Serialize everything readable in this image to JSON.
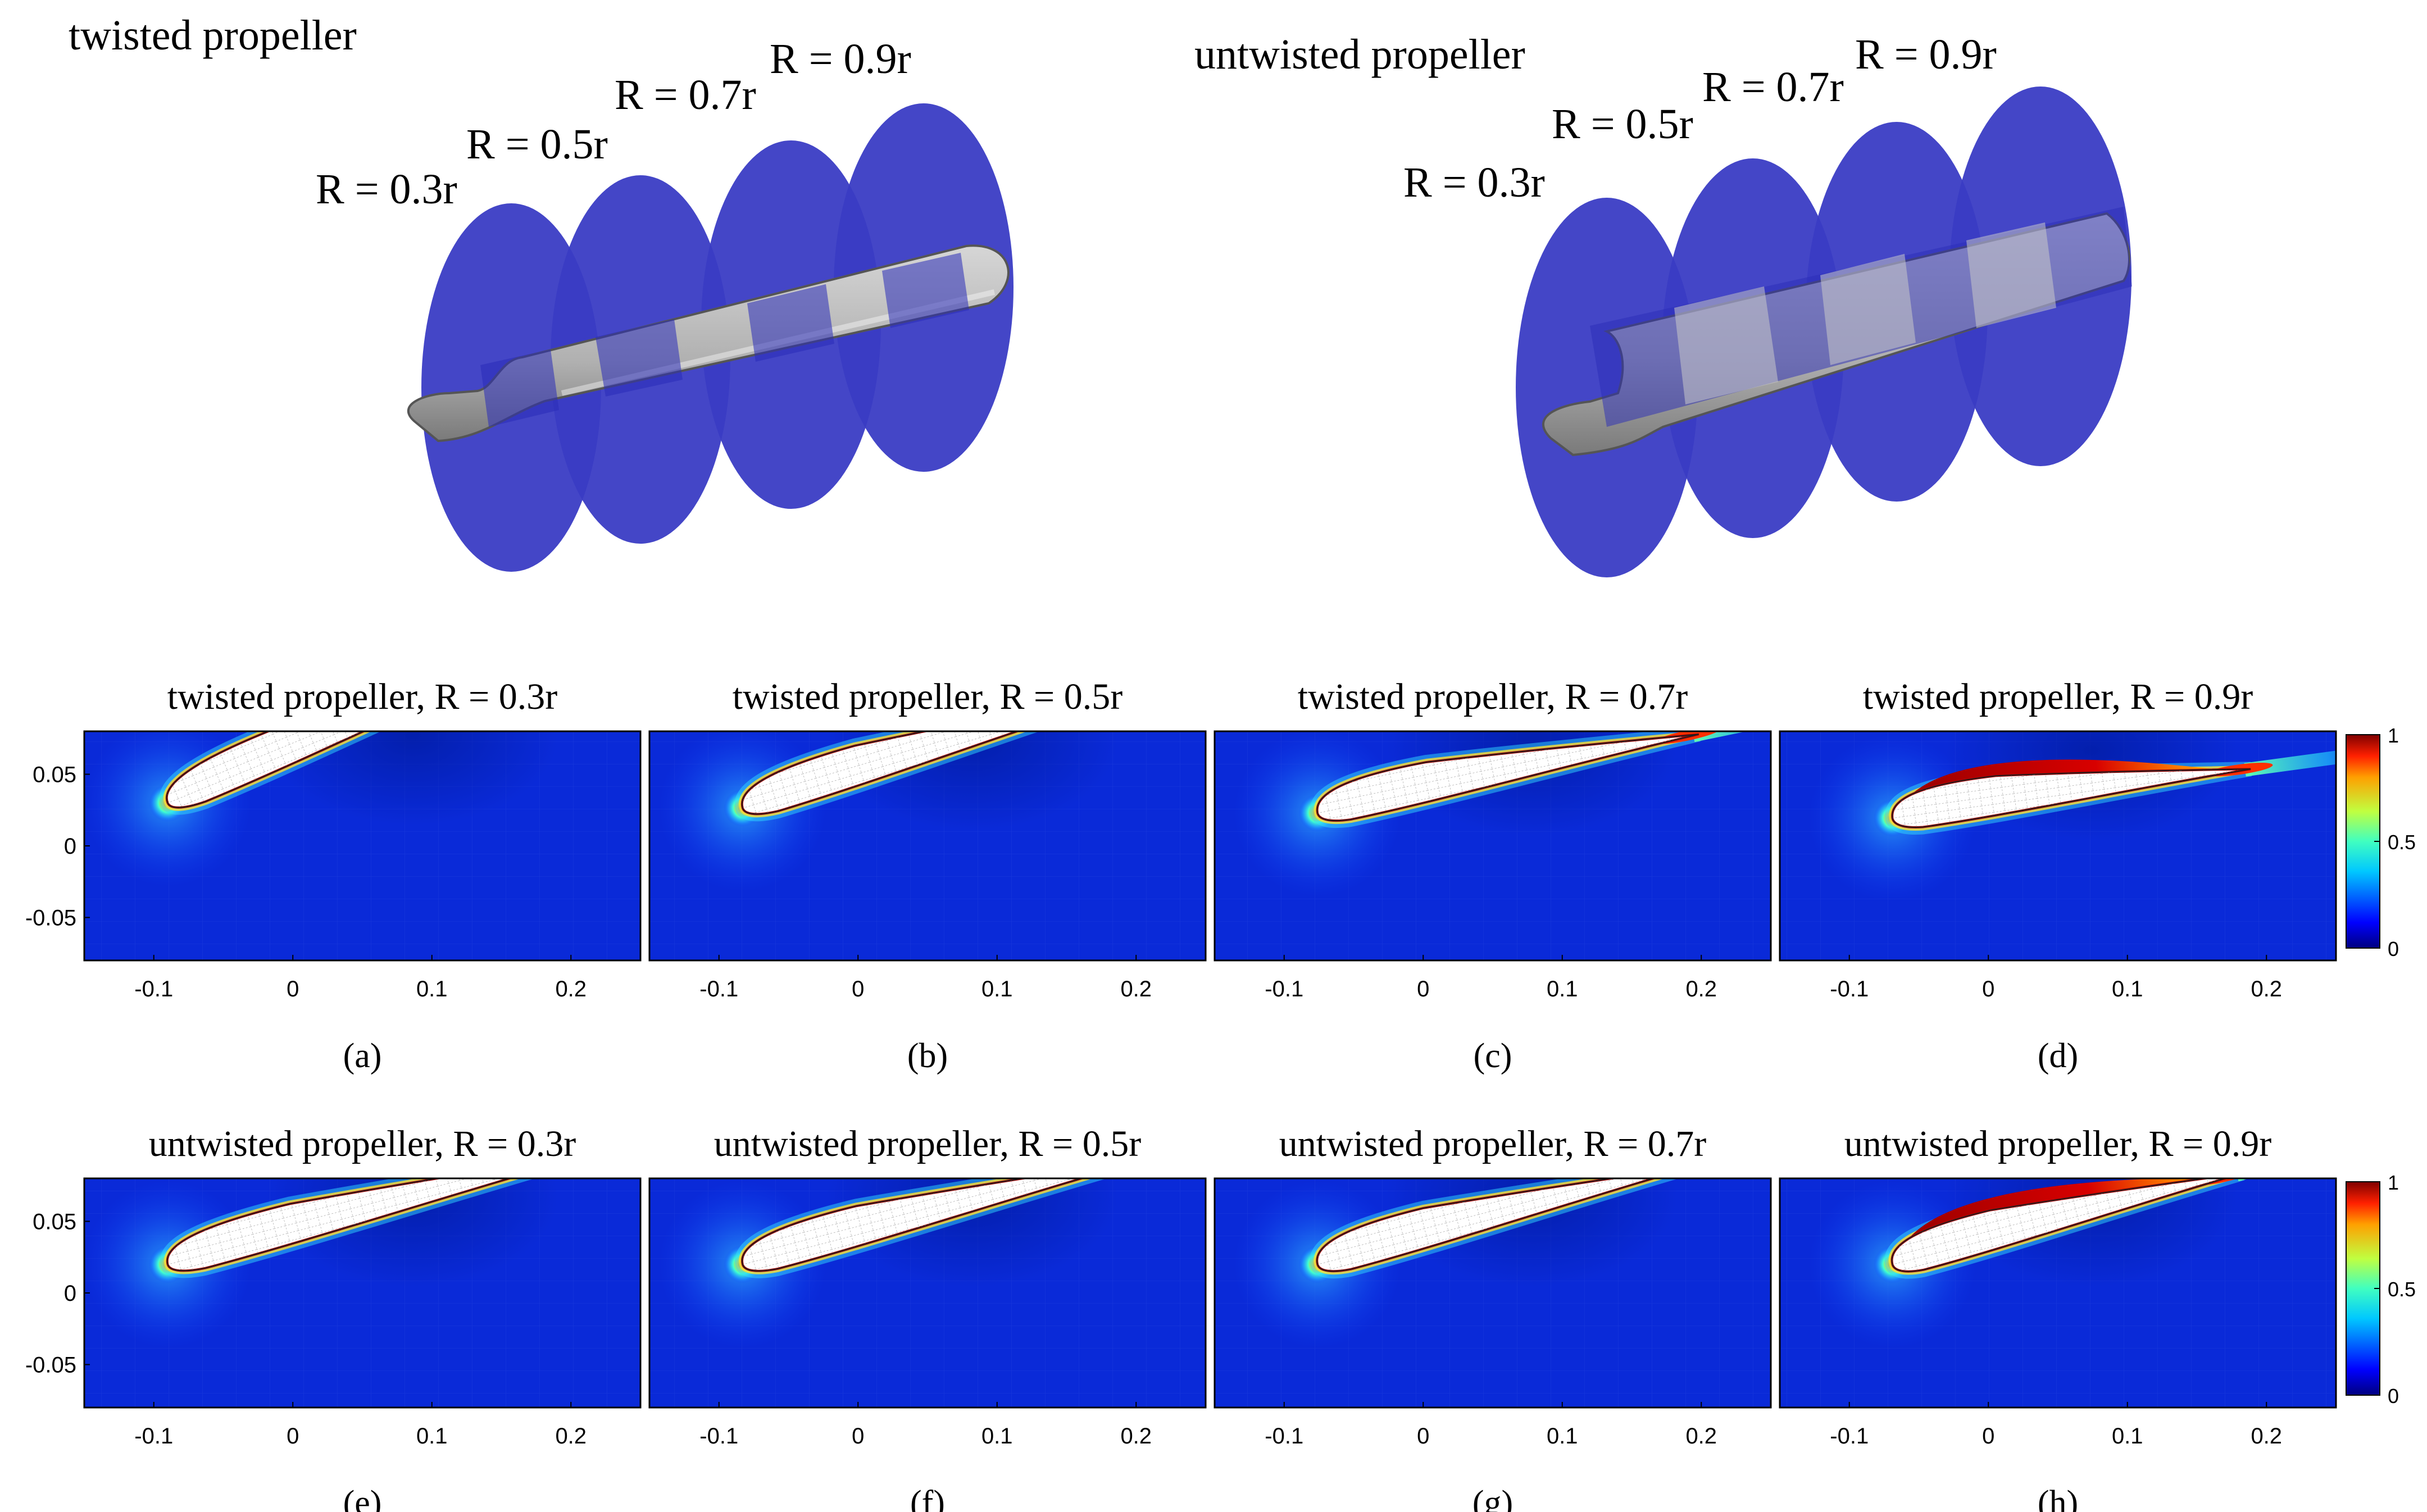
{
  "top": {
    "twisted": {
      "title": "twisted propeller",
      "labels": [
        "R = 0.3r",
        "R = 0.5r",
        "R = 0.7r",
        "R = 0.9r"
      ]
    },
    "untwisted": {
      "title": "untwisted propeller",
      "labels": [
        "R = 0.3r",
        "R = 0.5r",
        "R = 0.7r",
        "R = 0.9r"
      ]
    }
  },
  "chart_data": [
    {
      "id": "a",
      "type": "heatmap",
      "title": "twisted propeller, R = 0.3r",
      "caption": "(a)",
      "twisted": true,
      "chord_angle_deg": -23,
      "suction_hot": false
    },
    {
      "id": "b",
      "type": "heatmap",
      "title": "twisted propeller, R = 0.5r",
      "caption": "(b)",
      "twisted": true,
      "chord_angle_deg": -17,
      "suction_hot": false
    },
    {
      "id": "c",
      "type": "heatmap",
      "title": "twisted propeller, R = 0.7r",
      "caption": "(c)",
      "twisted": true,
      "chord_angle_deg": -12,
      "suction_hot": false
    },
    {
      "id": "d",
      "type": "heatmap",
      "title": "twisted propeller, R = 0.9r",
      "caption": "(d)",
      "twisted": true,
      "chord_angle_deg": -8,
      "suction_hot": true
    },
    {
      "id": "e",
      "type": "heatmap",
      "title": "untwisted propeller, R = 0.3r",
      "caption": "(e)",
      "twisted": false,
      "chord_angle_deg": -15,
      "suction_hot": false
    },
    {
      "id": "f",
      "type": "heatmap",
      "title": "untwisted propeller, R = 0.5r",
      "caption": "(f)",
      "twisted": false,
      "chord_angle_deg": -15,
      "suction_hot": false
    },
    {
      "id": "g",
      "type": "heatmap",
      "title": "untwisted propeller, R = 0.7r",
      "caption": "(g)",
      "twisted": false,
      "chord_angle_deg": -15,
      "suction_hot": false
    },
    {
      "id": "h",
      "type": "heatmap",
      "title": "untwisted propeller, R = 0.9r",
      "caption": "(h)",
      "twisted": false,
      "chord_angle_deg": -15,
      "suction_hot": true
    }
  ],
  "axes": {
    "xlim": [
      -0.15,
      0.25
    ],
    "ylim": [
      -0.08,
      0.08
    ],
    "xticks": [
      -0.1,
      0,
      0.1,
      0.2
    ],
    "xtick_labels": [
      "-0.1",
      "0",
      "0.1",
      "0.2"
    ],
    "yticks": [
      0.05,
      0,
      -0.05
    ],
    "ytick_labels": [
      "0.05",
      "0",
      "-0.05"
    ]
  },
  "colorbar": {
    "range": [
      0,
      1
    ],
    "tick_labels": [
      "1",
      "0.5",
      "0"
    ],
    "colormap": "jet"
  },
  "colors": {
    "plane": "#3a3cc4",
    "blade": "#b5b5b5",
    "background_field": "#0a2ad8"
  }
}
